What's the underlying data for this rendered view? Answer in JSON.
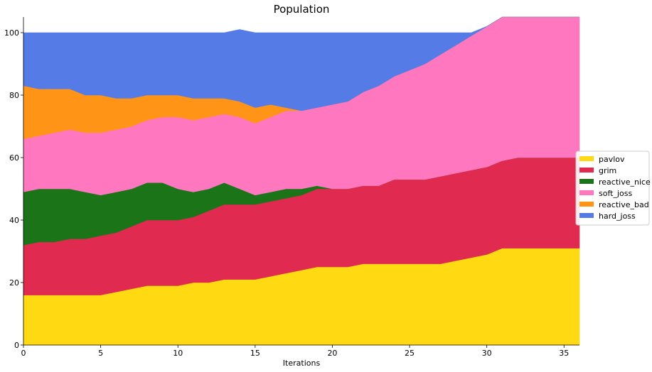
{
  "chart_data": {
    "type": "area",
    "title": "Population",
    "xlabel": "Iterations",
    "ylabel": "",
    "xlim": [
      0,
      36
    ],
    "ylim": [
      0,
      105
    ],
    "xticks": [
      0,
      5,
      10,
      15,
      20,
      25,
      30,
      35
    ],
    "yticks": [
      0,
      20,
      40,
      60,
      80,
      100
    ],
    "grid": false,
    "legend_position": "center-right",
    "x": [
      0,
      1,
      2,
      3,
      4,
      5,
      6,
      7,
      8,
      9,
      10,
      11,
      12,
      13,
      14,
      15,
      16,
      17,
      18,
      19,
      20,
      21,
      22,
      23,
      24,
      25,
      26,
      27,
      28,
      29,
      30,
      31,
      32,
      33,
      34,
      35,
      36
    ],
    "series": [
      {
        "name": "pavlov",
        "color": "#FFDA13",
        "values": [
          16,
          16,
          16,
          16,
          16,
          16,
          17,
          18,
          19,
          19,
          19,
          20,
          20,
          21,
          21,
          21,
          22,
          23,
          24,
          25,
          25,
          25,
          26,
          26,
          26,
          26,
          26,
          26,
          27,
          28,
          29,
          31,
          31,
          31,
          31,
          31,
          31
        ]
      },
      {
        "name": "grim",
        "color": "#E02A4F",
        "values": [
          16,
          17,
          17,
          18,
          18,
          19,
          19,
          20,
          21,
          21,
          21,
          21,
          23,
          24,
          24,
          24,
          24,
          24,
          24,
          25,
          25,
          25,
          25,
          25,
          27,
          27,
          27,
          28,
          28,
          28,
          28,
          28,
          29,
          29,
          29,
          29,
          29
        ]
      },
      {
        "name": "reactive_nice",
        "color": "#1C7419",
        "values": [
          17,
          17,
          17,
          16,
          15,
          13,
          13,
          12,
          12,
          12,
          10,
          8,
          7,
          7,
          5,
          3,
          3,
          3,
          2,
          1,
          0,
          0,
          0,
          0,
          0,
          0,
          0,
          0,
          0,
          0,
          0,
          0,
          0,
          0,
          0,
          0,
          0
        ]
      },
      {
        "name": "soft_joss",
        "color": "#FF78BF",
        "values": [
          17,
          17,
          18,
          19,
          19,
          20,
          20,
          20,
          20,
          21,
          23,
          23,
          23,
          22,
          23,
          23,
          24,
          25,
          25,
          25,
          27,
          28,
          30,
          32,
          33,
          35,
          37,
          39,
          41,
          43,
          45,
          46,
          45,
          45,
          45,
          45,
          45
        ]
      },
      {
        "name": "reactive_bad",
        "color": "#FF9416",
        "values": [
          17,
          15,
          14,
          13,
          12,
          12,
          10,
          9,
          8,
          7,
          7,
          7,
          6,
          5,
          5,
          5,
          4,
          1,
          0,
          0,
          0,
          0,
          0,
          0,
          0,
          0,
          0,
          0,
          0,
          0,
          0,
          0,
          0,
          0,
          0,
          0,
          0
        ]
      },
      {
        "name": "hard_joss",
        "color": "#557CE6",
        "values": [
          17,
          18,
          18,
          18,
          20,
          20,
          21,
          21,
          20,
          20,
          20,
          21,
          21,
          21,
          23,
          24,
          23,
          24,
          25,
          24,
          23,
          22,
          19,
          17,
          14,
          12,
          10,
          7,
          4,
          1,
          0,
          0,
          0,
          0,
          0,
          0,
          0
        ]
      }
    ]
  }
}
